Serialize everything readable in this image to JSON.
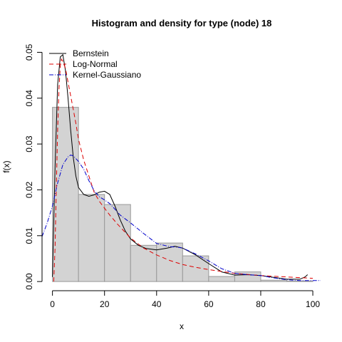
{
  "chart_data": {
    "type": "bar",
    "title": "Histogram and density for type (node) 18",
    "xlabel": "x",
    "ylabel": "f(x)",
    "xlim": [
      -4,
      103
    ],
    "ylim": [
      -0.002,
      0.051
    ],
    "x_ticks": [
      0,
      20,
      40,
      60,
      80,
      100
    ],
    "y_ticks": [
      0.0,
      0.01,
      0.02,
      0.03,
      0.04,
      0.05
    ],
    "x_tick_labels": [
      "0",
      "20",
      "40",
      "60",
      "80",
      "100"
    ],
    "y_tick_labels": [
      "0.00",
      "0.01",
      "0.02",
      "0.03",
      "0.04",
      "0.05"
    ],
    "histogram": {
      "bin_edges": [
        0,
        10,
        20,
        30,
        40,
        50,
        60,
        70,
        80,
        90,
        100
      ],
      "densities": [
        0.038,
        0.019,
        0.0168,
        0.0079,
        0.0084,
        0.0056,
        0.0011,
        0.0021,
        0.0003,
        0.0001
      ],
      "fill": "#d3d3d3",
      "stroke": "#999999"
    },
    "series": [
      {
        "name": "Bernstein",
        "color": "#000000",
        "dash": "solid",
        "x": [
          0,
          1,
          2,
          3,
          4,
          5,
          6,
          7,
          8,
          9,
          10,
          12,
          14,
          16,
          18,
          20,
          22,
          24,
          26,
          28,
          30,
          33,
          36,
          40,
          44,
          47,
          50,
          55,
          60,
          65,
          70,
          75,
          80,
          85,
          90,
          95,
          97,
          98
        ],
        "y": [
          0.001,
          0.025,
          0.043,
          0.049,
          0.0495,
          0.046,
          0.04,
          0.033,
          0.027,
          0.023,
          0.0205,
          0.019,
          0.0186,
          0.0189,
          0.0195,
          0.0197,
          0.019,
          0.0165,
          0.0135,
          0.011,
          0.0093,
          0.0079,
          0.0072,
          0.0069,
          0.0073,
          0.0077,
          0.0073,
          0.0058,
          0.0039,
          0.0021,
          0.0014,
          0.0015,
          0.0013,
          0.0009,
          0.0005,
          0.0005,
          0.001,
          0.0015
        ]
      },
      {
        "name": "Log-Normal",
        "color": "#dd0000",
        "dash": "6,4",
        "x": [
          0.5,
          1,
          1.5,
          2,
          2.5,
          3,
          3.5,
          4,
          5,
          6,
          7,
          8,
          9,
          10,
          12,
          14,
          16,
          18,
          20,
          22,
          25,
          30,
          35,
          40,
          45,
          50,
          55,
          60,
          70,
          80,
          90,
          100
        ],
        "y": [
          0.0,
          0.0075,
          0.021,
          0.033,
          0.042,
          0.047,
          0.0485,
          0.048,
          0.0465,
          0.0435,
          0.0405,
          0.0375,
          0.0345,
          0.031,
          0.0265,
          0.023,
          0.0195,
          0.0175,
          0.016,
          0.0145,
          0.0125,
          0.0095,
          0.0073,
          0.0058,
          0.0046,
          0.0037,
          0.0031,
          0.0026,
          0.0018,
          0.0013,
          0.001,
          0.0007
        ]
      },
      {
        "name": "Kernel-Gaussiano",
        "color": "#0000cc",
        "dash": "6,2,1,2",
        "x": [
          -4,
          -2,
          0,
          2,
          4,
          6,
          7,
          8,
          10,
          12,
          14,
          16,
          18,
          20,
          22,
          24,
          26,
          30,
          35,
          40,
          45,
          48,
          50,
          55,
          60,
          65,
          70,
          75,
          80,
          85,
          90,
          95,
          100,
          103
        ],
        "y": [
          0.0098,
          0.0128,
          0.0165,
          0.0215,
          0.0255,
          0.0272,
          0.0276,
          0.0274,
          0.0262,
          0.0245,
          0.022,
          0.0198,
          0.0185,
          0.0178,
          0.017,
          0.0158,
          0.0145,
          0.0128,
          0.0105,
          0.0083,
          0.0076,
          0.0075,
          0.0073,
          0.006,
          0.0045,
          0.0028,
          0.0018,
          0.0015,
          0.0013,
          0.0008,
          0.0004,
          0.0002,
          0.0002,
          0.0002
        ]
      }
    ],
    "legend": {
      "position": "top-left",
      "entries": [
        "Bernstein",
        "Log-Normal",
        "Kernel-Gaussiano"
      ]
    },
    "grid": false
  }
}
